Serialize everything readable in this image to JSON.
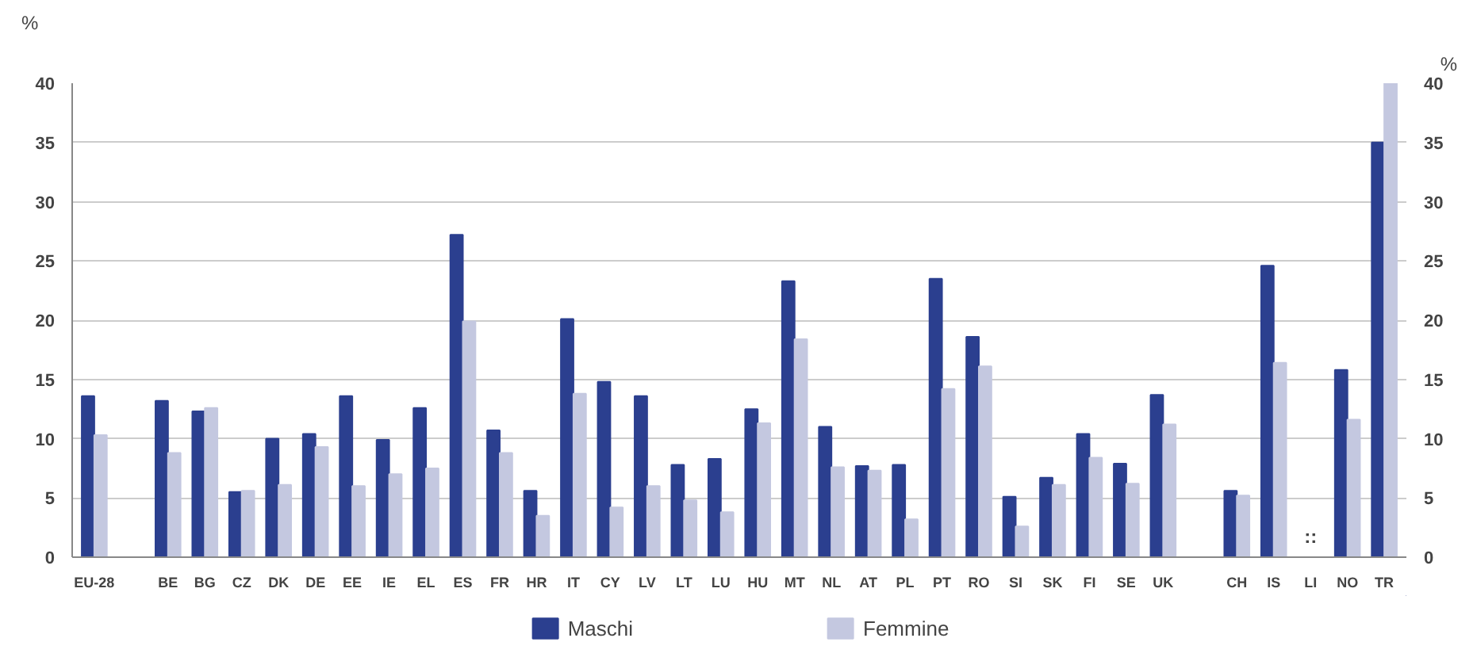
{
  "chart_data": {
    "type": "bar",
    "categories": [
      "EU-28",
      null,
      "BE",
      "BG",
      "CZ",
      "DK",
      "DE",
      "EE",
      "IE",
      "EL",
      "ES",
      "FR",
      "HR",
      "IT",
      "CY",
      "LV",
      "LT",
      "LU",
      "HU",
      "MT",
      "NL",
      "AT",
      "PL",
      "PT",
      "RO",
      "SI",
      "SK",
      "FI",
      "SE",
      "UK",
      null,
      "CH",
      "IS",
      "LI",
      "NO",
      "TR"
    ],
    "series": [
      {
        "name": "Maschi",
        "color": "#2b3f8f",
        "values": [
          13.6,
          null,
          13.2,
          12.3,
          5.5,
          10.0,
          10.4,
          13.6,
          9.9,
          12.6,
          27.2,
          10.7,
          5.6,
          20.1,
          14.8,
          13.6,
          7.8,
          8.3,
          12.5,
          23.3,
          11.0,
          7.7,
          7.8,
          23.5,
          18.6,
          5.1,
          6.7,
          10.4,
          7.9,
          13.7,
          null,
          5.6,
          24.6,
          null,
          15.8,
          35.0
        ]
      },
      {
        "name": "Femmine",
        "color": "#c4c8e0",
        "values": [
          10.3,
          null,
          8.8,
          12.6,
          5.6,
          6.1,
          9.3,
          6.0,
          7.0,
          7.5,
          19.9,
          8.8,
          3.5,
          13.8,
          4.2,
          6.0,
          4.8,
          3.8,
          11.3,
          18.4,
          7.6,
          7.3,
          3.2,
          14.2,
          16.1,
          2.6,
          6.1,
          8.4,
          6.2,
          11.2,
          null,
          5.2,
          16.4,
          null,
          11.6,
          40.0
        ]
      }
    ],
    "ylabel": "%",
    "y2label": "%",
    "ylim": [
      0,
      40
    ],
    "yticks": [
      0,
      5,
      10,
      15,
      20,
      25,
      30,
      35,
      40
    ],
    "y2lim": [
      0,
      40
    ],
    "y2ticks": [
      0,
      5,
      10,
      15,
      20,
      25,
      30,
      35,
      40
    ],
    "annotations": [
      "::"
    ],
    "grid": "y",
    "legend": "bottom"
  }
}
